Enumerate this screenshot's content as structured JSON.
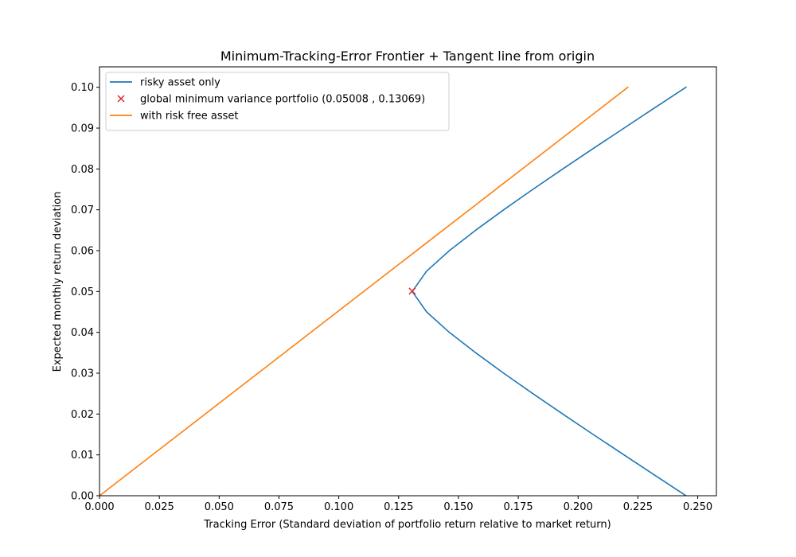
{
  "chart_data": {
    "type": "line",
    "title": "Minimum-Tracking-Error Frontier + Tangent line from origin",
    "xlabel": "Tracking Error (Standard deviation of portfolio return relative to market return)",
    "ylabel": "Expected monthly return deviation",
    "xlim": [
      0.0,
      0.2578
    ],
    "ylim": [
      0.0,
      0.105
    ],
    "x_ticks": [
      0.0,
      0.025,
      0.05,
      0.075,
      0.1,
      0.125,
      0.15,
      0.175,
      0.2,
      0.225,
      0.25
    ],
    "x_tick_labels": [
      "0.000",
      "0.025",
      "0.050",
      "0.075",
      "0.100",
      "0.125",
      "0.150",
      "0.175",
      "0.200",
      "0.225",
      "0.250"
    ],
    "y_ticks": [
      0.0,
      0.01,
      0.02,
      0.03,
      0.04,
      0.05,
      0.06,
      0.07,
      0.08,
      0.09,
      0.1
    ],
    "y_tick_labels": [
      "0.00",
      "0.01",
      "0.02",
      "0.03",
      "0.04",
      "0.05",
      "0.06",
      "0.07",
      "0.08",
      "0.09",
      "0.10"
    ],
    "grid": false,
    "legend_position": "top-left",
    "series": [
      {
        "name": "risky asset only",
        "kind": "line",
        "color": "#1f77b4",
        "points": [
          [
            0.2451,
            0.0
          ],
          [
            0.2321,
            0.005
          ],
          [
            0.2192,
            0.01
          ],
          [
            0.2063,
            0.015
          ],
          [
            0.1936,
            0.02
          ],
          [
            0.1811,
            0.025
          ],
          [
            0.1689,
            0.03
          ],
          [
            0.1572,
            0.035
          ],
          [
            0.1462,
            0.04
          ],
          [
            0.1367,
            0.045
          ],
          [
            0.1307,
            0.05
          ],
          [
            0.1367,
            0.055
          ],
          [
            0.1462,
            0.06
          ],
          [
            0.1572,
            0.065
          ],
          [
            0.1689,
            0.07
          ],
          [
            0.1811,
            0.075
          ],
          [
            0.1936,
            0.08
          ],
          [
            0.2063,
            0.085
          ],
          [
            0.2192,
            0.09
          ],
          [
            0.2321,
            0.095
          ],
          [
            0.2451,
            0.1
          ]
        ]
      },
      {
        "name": "global minimum variance portfolio (0.05008 , 0.13069)",
        "kind": "marker",
        "color": "#d62728",
        "points": [
          [
            0.13069,
            0.05008
          ]
        ]
      },
      {
        "name": "with risk free asset",
        "kind": "line",
        "color": "#ff7f0e",
        "points": [
          [
            0.0,
            0.0
          ],
          [
            0.2208,
            0.1
          ]
        ]
      }
    ]
  }
}
